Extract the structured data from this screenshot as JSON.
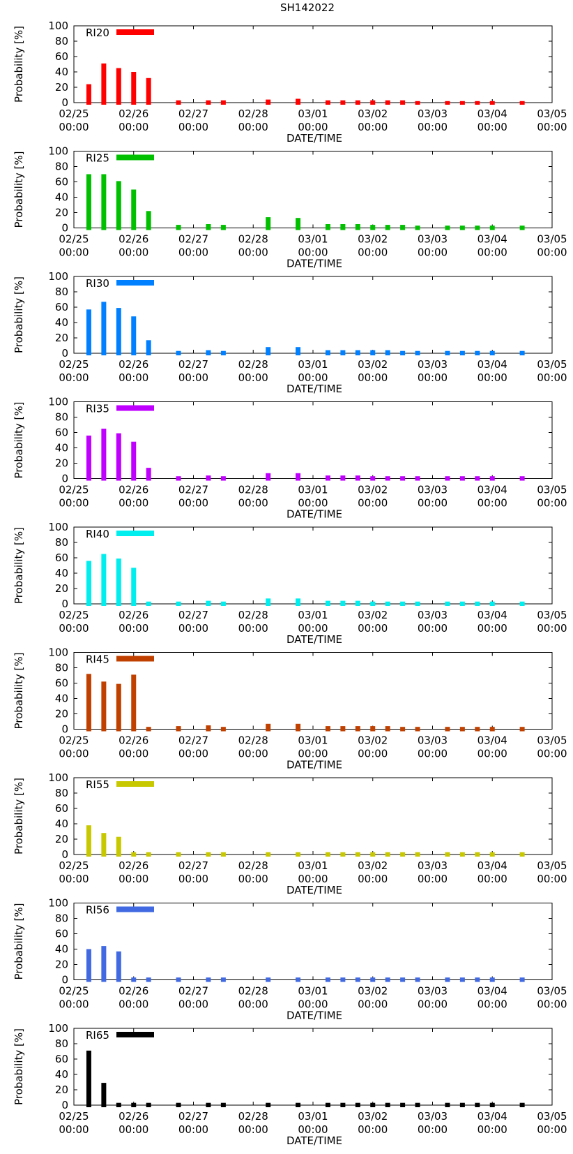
{
  "title": "SH142022",
  "chart_data": {
    "type": "bar",
    "title": "SH142022",
    "xlabel": "DATE/TIME",
    "ylabel": "Probability [%]",
    "ylim": [
      0,
      100
    ],
    "y_ticks": [
      "0",
      "20",
      "40",
      "60",
      "80",
      "100"
    ],
    "x_ticks": [
      {
        "date": "02/25",
        "time": "00:00"
      },
      {
        "date": "02/26",
        "time": "00:00"
      },
      {
        "date": "02/27",
        "time": "00:00"
      },
      {
        "date": "02/28",
        "time": "00:00"
      },
      {
        "date": "03/01",
        "time": "00:00"
      },
      {
        "date": "03/02",
        "time": "00:00"
      },
      {
        "date": "03/03",
        "time": "00:00"
      },
      {
        "date": "03/04",
        "time": "00:00"
      },
      {
        "date": "03/05",
        "time": "00:00"
      }
    ],
    "x_hours": [
      6,
      12,
      18,
      24,
      30,
      42,
      54,
      60,
      78,
      90,
      102,
      108,
      114,
      120,
      126,
      132,
      138,
      150,
      156,
      162,
      168,
      180
    ],
    "series": [
      {
        "name": "RI20",
        "color": "#ff0000",
        "values": [
          24,
          51,
          45,
          40,
          32,
          3,
          3,
          3,
          4,
          5,
          3,
          3,
          3,
          3,
          3,
          3,
          2,
          2,
          2,
          2,
          2,
          2
        ]
      },
      {
        "name": "RI25",
        "color": "#00c000",
        "values": [
          70,
          70,
          61,
          50,
          22,
          4,
          5,
          4,
          14,
          13,
          5,
          5,
          5,
          4,
          4,
          4,
          3,
          3,
          3,
          3,
          3,
          3
        ]
      },
      {
        "name": "RI30",
        "color": "#0080ff",
        "values": [
          57,
          67,
          59,
          48,
          17,
          3,
          4,
          3,
          8,
          8,
          4,
          4,
          4,
          4,
          4,
          3,
          3,
          3,
          3,
          3,
          3,
          3
        ]
      },
      {
        "name": "RI35",
        "color": "#c000ff",
        "values": [
          56,
          65,
          59,
          48,
          14,
          3,
          4,
          3,
          7,
          7,
          4,
          4,
          4,
          3,
          3,
          3,
          3,
          3,
          3,
          3,
          3,
          3
        ]
      },
      {
        "name": "RI40",
        "color": "#00eeee",
        "values": [
          56,
          65,
          59,
          47,
          3,
          3,
          4,
          3,
          7,
          7,
          4,
          4,
          4,
          3,
          3,
          3,
          3,
          3,
          3,
          3,
          3,
          3
        ]
      },
      {
        "name": "RI45",
        "color": "#c04000",
        "values": [
          72,
          62,
          59,
          71,
          3,
          4,
          5,
          3,
          7,
          7,
          4,
          4,
          4,
          4,
          4,
          3,
          3,
          3,
          3,
          3,
          3,
          3
        ]
      },
      {
        "name": "RI55",
        "color": "#c8c800",
        "values": [
          38,
          28,
          23,
          3,
          3,
          3,
          3,
          3,
          3,
          3,
          3,
          3,
          3,
          3,
          3,
          3,
          3,
          3,
          3,
          3,
          3,
          3
        ]
      },
      {
        "name": "RI56",
        "color": "#4169e1",
        "values": [
          40,
          44,
          37,
          3,
          3,
          3,
          3,
          3,
          3,
          3,
          3,
          3,
          3,
          3,
          3,
          3,
          3,
          3,
          3,
          3,
          3,
          3
        ]
      },
      {
        "name": "RI65",
        "color": "#000000",
        "values": [
          71,
          29,
          3,
          3,
          3,
          3,
          3,
          3,
          3,
          3,
          3,
          3,
          3,
          3,
          3,
          3,
          3,
          3,
          3,
          3,
          3,
          3
        ]
      }
    ]
  }
}
